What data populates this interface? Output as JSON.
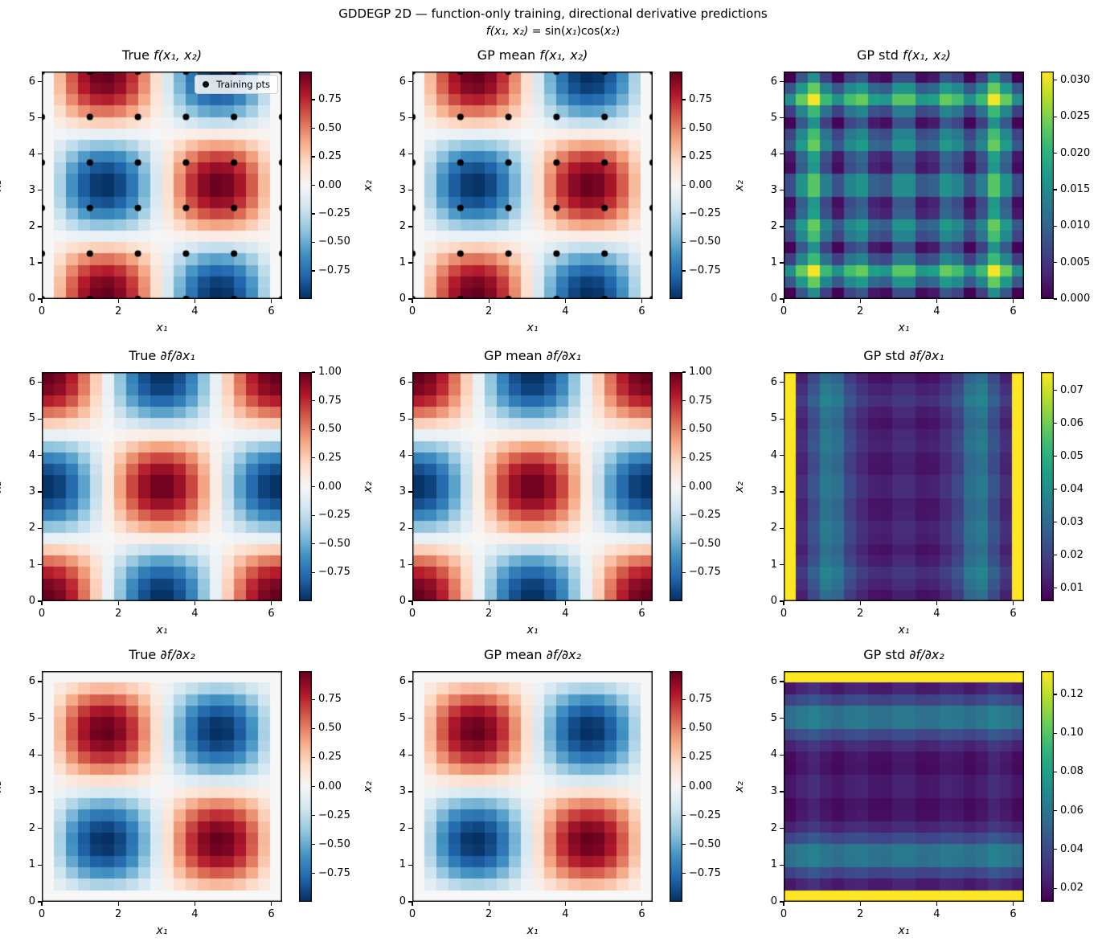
{
  "figure": {
    "title": "GDDEGP 2D — function-only training, directional derivative predictions",
    "subtitle": "f(x₁, x₂) = sin(x₁)cos(x₂)",
    "subtitle_segments": [
      {
        "text": "f(x₁, x₂)",
        "italic": true
      },
      {
        "text": " = sin(",
        "italic": false
      },
      {
        "text": "x₁",
        "italic": true
      },
      {
        "text": ")cos(",
        "italic": false
      },
      {
        "text": "x₂",
        "italic": true
      },
      {
        "text": ")",
        "italic": false
      }
    ]
  },
  "axes_defaults": {
    "xlabel": "x₁",
    "ylabel": "x₂",
    "x_range": [
      0,
      6.2832
    ],
    "y_range": [
      0,
      6.2832
    ],
    "x_ticks": [
      {
        "v": 0,
        "label": "0"
      },
      {
        "v": 2,
        "label": "2"
      },
      {
        "v": 4,
        "label": "4"
      },
      {
        "v": 6,
        "label": "6"
      }
    ],
    "y_ticks": [
      {
        "v": 0,
        "label": "0"
      },
      {
        "v": 1,
        "label": "1"
      },
      {
        "v": 2,
        "label": "2"
      },
      {
        "v": 3,
        "label": "3"
      },
      {
        "v": 4,
        "label": "4"
      },
      {
        "v": 5,
        "label": "5"
      },
      {
        "v": 6,
        "label": "6"
      }
    ]
  },
  "colormaps": {
    "RdBu_r": [
      "#053061",
      "#2166ac",
      "#4393c3",
      "#92c5de",
      "#d1e5f0",
      "#f7f7f7",
      "#fddbc7",
      "#f4a582",
      "#d6604d",
      "#b2182b",
      "#67001f"
    ],
    "viridis": [
      "#440154",
      "#482878",
      "#3e4989",
      "#31688e",
      "#26828e",
      "#1f9e89",
      "#35b779",
      "#6ece58",
      "#b5de2b",
      "#fde725"
    ]
  },
  "training_points": {
    "legend_label": "Training pts",
    "marker_color": "#000000",
    "marker_radius_px": 4,
    "grid_values": [
      0,
      1.2566,
      2.5133,
      3.7699,
      5.0265,
      6.2832
    ],
    "layout": "6x6 grid (all pairwise combinations)"
  },
  "chart_data": [
    {
      "type": "heatmap",
      "title_prefix": "True ",
      "title_math": "f(x₁, x₂)",
      "model_key": "f",
      "model": "sin(x1)*cos(x2)",
      "grid_n": 20,
      "colormap": "RdBu_r",
      "vmin": -0.9966,
      "vmax": 0.9966,
      "show_training_points": true,
      "show_legend": true,
      "colorbar_ticks": [
        {
          "v": 0.75,
          "label": "0.75"
        },
        {
          "v": 0.5,
          "label": "0.50"
        },
        {
          "v": 0.25,
          "label": "0.25"
        },
        {
          "v": 0,
          "label": "0.00"
        },
        {
          "v": -0.25,
          "label": "−0.25"
        },
        {
          "v": -0.5,
          "label": "−0.50"
        },
        {
          "v": -0.75,
          "label": "−0.75"
        }
      ]
    },
    {
      "type": "heatmap",
      "title_prefix": "GP mean ",
      "title_math": "f(x₁, x₂)",
      "model_key": "f",
      "model": "GP posterior mean ≈ sin(x1)*cos(x2)",
      "grid_n": 20,
      "colormap": "RdBu_r",
      "vmin": -0.9966,
      "vmax": 0.9966,
      "show_training_points": true,
      "show_legend": false,
      "colorbar_ticks": [
        {
          "v": 0.75,
          "label": "0.75"
        },
        {
          "v": 0.5,
          "label": "0.50"
        },
        {
          "v": 0.25,
          "label": "0.25"
        },
        {
          "v": 0,
          "label": "0.00"
        },
        {
          "v": -0.25,
          "label": "−0.25"
        },
        {
          "v": -0.5,
          "label": "−0.50"
        },
        {
          "v": -0.75,
          "label": "−0.75"
        }
      ]
    },
    {
      "type": "heatmap",
      "title_prefix": "GP std ",
      "title_math": "f(x₁, x₂)",
      "model_key": "std_f",
      "model": "GP posterior std of f (low at training pts, peaks in edge gaps)",
      "params": {
        "a": 0.009,
        "boost": 1.72
      },
      "grid_n": 20,
      "colormap": "viridis",
      "vmin": 0.0,
      "vmax": 0.0312,
      "show_training_points": false,
      "show_legend": false,
      "colorbar_ticks": [
        {
          "v": 0.03,
          "label": "0.030"
        },
        {
          "v": 0.025,
          "label": "0.025"
        },
        {
          "v": 0.02,
          "label": "0.020"
        },
        {
          "v": 0.015,
          "label": "0.015"
        },
        {
          "v": 0.01,
          "label": "0.010"
        },
        {
          "v": 0.005,
          "label": "0.005"
        },
        {
          "v": 0,
          "label": "0.000"
        }
      ]
    },
    {
      "type": "heatmap",
      "title_prefix": "True ",
      "title_math": "∂f/∂x₁",
      "model_key": "dfdx1",
      "model": "cos(x1)*cos(x2)",
      "grid_n": 20,
      "colormap": "RdBu_r",
      "vmin": -1.0,
      "vmax": 1.0,
      "show_training_points": false,
      "show_legend": false,
      "colorbar_ticks": [
        {
          "v": 1,
          "label": "1.00"
        },
        {
          "v": 0.75,
          "label": "0.75"
        },
        {
          "v": 0.5,
          "label": "0.50"
        },
        {
          "v": 0.25,
          "label": "0.25"
        },
        {
          "v": 0,
          "label": "0.00"
        },
        {
          "v": -0.25,
          "label": "−0.25"
        },
        {
          "v": -0.5,
          "label": "−0.50"
        },
        {
          "v": -0.75,
          "label": "−0.75"
        }
      ]
    },
    {
      "type": "heatmap",
      "title_prefix": "GP mean ",
      "title_math": "∂f/∂x₁",
      "model_key": "dfdx1",
      "model": "GP directional-derivative mean ≈ cos(x1)*cos(x2)",
      "grid_n": 20,
      "colormap": "RdBu_r",
      "vmin": -1.0,
      "vmax": 1.0,
      "show_training_points": false,
      "show_legend": false,
      "colorbar_ticks": [
        {
          "v": 1,
          "label": "1.00"
        },
        {
          "v": 0.75,
          "label": "0.75"
        },
        {
          "v": 0.5,
          "label": "0.50"
        },
        {
          "v": 0.25,
          "label": "0.25"
        },
        {
          "v": 0,
          "label": "0.00"
        },
        {
          "v": -0.25,
          "label": "−0.25"
        },
        {
          "v": -0.5,
          "label": "−0.50"
        },
        {
          "v": -0.75,
          "label": "−0.75"
        }
      ]
    },
    {
      "type": "heatmap",
      "title_prefix": "GP std ",
      "title_math": "∂f/∂x₁",
      "model_key": "std_d1",
      "model": "GP std of ∂f/∂x1: max at x1 domain edges, vertical stripe pattern",
      "params": {
        "edge": 0.0755,
        "base": 0.0085,
        "amp": 0.0235,
        "c1": 1.13,
        "c2": 5.15,
        "w": 0.48,
        "cross": 0.006,
        "boost": 1.72,
        "tex": 0.004
      },
      "grid_n": 20,
      "colormap": "viridis",
      "vmin": 0.006,
      "vmax": 0.0755,
      "show_training_points": false,
      "show_legend": false,
      "colorbar_ticks": [
        {
          "v": 0.07,
          "label": "0.07"
        },
        {
          "v": 0.06,
          "label": "0.06"
        },
        {
          "v": 0.05,
          "label": "0.05"
        },
        {
          "v": 0.04,
          "label": "0.04"
        },
        {
          "v": 0.03,
          "label": "0.03"
        },
        {
          "v": 0.02,
          "label": "0.02"
        },
        {
          "v": 0.01,
          "label": "0.01"
        }
      ]
    },
    {
      "type": "heatmap",
      "title_prefix": "True ",
      "title_math": "∂f/∂x₂",
      "model_key": "dfdx2",
      "model": "-sin(x1)*sin(x2)",
      "grid_n": 20,
      "colormap": "RdBu_r",
      "vmin": -0.9932,
      "vmax": 0.9932,
      "show_training_points": false,
      "show_legend": false,
      "colorbar_ticks": [
        {
          "v": 0.75,
          "label": "0.75"
        },
        {
          "v": 0.5,
          "label": "0.50"
        },
        {
          "v": 0.25,
          "label": "0.25"
        },
        {
          "v": 0,
          "label": "0.00"
        },
        {
          "v": -0.25,
          "label": "−0.25"
        },
        {
          "v": -0.5,
          "label": "−0.50"
        },
        {
          "v": -0.75,
          "label": "−0.75"
        }
      ]
    },
    {
      "type": "heatmap",
      "title_prefix": "GP mean ",
      "title_math": "∂f/∂x₂",
      "model_key": "dfdx2",
      "model": "GP directional-derivative mean ≈ -sin(x1)*sin(x2)",
      "grid_n": 20,
      "colormap": "RdBu_r",
      "vmin": -0.9932,
      "vmax": 0.9932,
      "show_training_points": false,
      "show_legend": false,
      "colorbar_ticks": [
        {
          "v": 0.75,
          "label": "0.75"
        },
        {
          "v": 0.5,
          "label": "0.50"
        },
        {
          "v": 0.25,
          "label": "0.25"
        },
        {
          "v": 0,
          "label": "0.00"
        },
        {
          "v": -0.25,
          "label": "−0.25"
        },
        {
          "v": -0.5,
          "label": "−0.50"
        },
        {
          "v": -0.75,
          "label": "−0.75"
        }
      ]
    },
    {
      "type": "heatmap",
      "title_prefix": "GP std ",
      "title_math": "∂f/∂x₂",
      "model_key": "std_d2",
      "model": "GP std of ∂f/∂x2: max at x2 domain edges, horizontal stripe pattern",
      "params": {
        "edge": 0.132,
        "base": 0.015,
        "amp": 0.045,
        "c1": 1.18,
        "c2": 5.1,
        "w": 0.5,
        "cross": 0.009,
        "boost": 1.72,
        "tex": 0.006
      },
      "grid_n": 20,
      "colormap": "viridis",
      "vmin": 0.013,
      "vmax": 0.132,
      "show_training_points": false,
      "show_legend": false,
      "colorbar_ticks": [
        {
          "v": 0.12,
          "label": "0.12"
        },
        {
          "v": 0.1,
          "label": "0.10"
        },
        {
          "v": 0.08,
          "label": "0.08"
        },
        {
          "v": 0.06,
          "label": "0.06"
        },
        {
          "v": 0.04,
          "label": "0.04"
        },
        {
          "v": 0.02,
          "label": "0.02"
        }
      ]
    }
  ]
}
